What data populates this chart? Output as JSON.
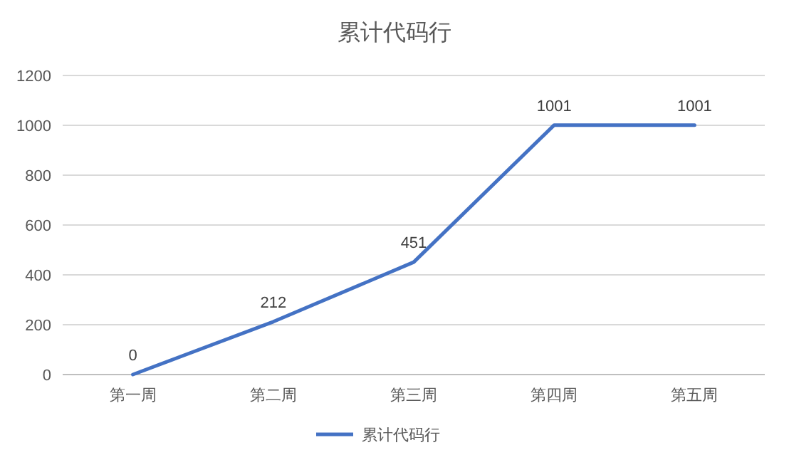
{
  "chart_data": {
    "type": "line",
    "title": "累计代码行",
    "categories": [
      "第一周",
      "第二周",
      "第三周",
      "第四周",
      "第五周"
    ],
    "series": [
      {
        "name": "累计代码行",
        "color": "#4472c4",
        "values": [
          0,
          212,
          451,
          1001,
          1001
        ]
      }
    ],
    "ylim": [
      0,
      1200
    ],
    "yticks": [
      0,
      200,
      400,
      600,
      800,
      1000,
      1200
    ],
    "grid": "y",
    "legend": "bottom",
    "data_labels": true,
    "marker": "none",
    "line_style": "solid"
  }
}
